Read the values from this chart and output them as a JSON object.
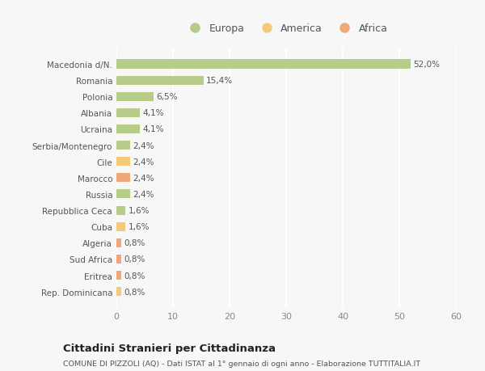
{
  "categories": [
    "Rep. Dominicana",
    "Eritrea",
    "Sud Africa",
    "Algeria",
    "Cuba",
    "Repubblica Ceca",
    "Russia",
    "Marocco",
    "Cile",
    "Serbia/Montenegro",
    "Ucraina",
    "Albania",
    "Polonia",
    "Romania",
    "Macedonia d/N."
  ],
  "values": [
    0.8,
    0.8,
    0.8,
    0.8,
    1.6,
    1.6,
    2.4,
    2.4,
    2.4,
    2.4,
    4.1,
    4.1,
    6.5,
    15.4,
    52.0
  ],
  "colors": [
    "#f5c97a",
    "#f0a878",
    "#f0a878",
    "#f0a878",
    "#f5c97a",
    "#b8cc8a",
    "#b8cc8a",
    "#f0a878",
    "#f5c97a",
    "#b8cc8a",
    "#b8cc8a",
    "#b8cc8a",
    "#b8cc8a",
    "#b8cc8a",
    "#b8cc8a"
  ],
  "labels": [
    "0,8%",
    "0,8%",
    "0,8%",
    "0,8%",
    "1,6%",
    "1,6%",
    "2,4%",
    "2,4%",
    "2,4%",
    "2,4%",
    "4,1%",
    "4,1%",
    "6,5%",
    "15,4%",
    "52,0%"
  ],
  "xlim": [
    0,
    60
  ],
  "xticks": [
    0,
    10,
    20,
    30,
    40,
    50,
    60
  ],
  "legend_items": [
    {
      "label": "Europa",
      "color": "#b8cc8a"
    },
    {
      "label": "America",
      "color": "#f5c97a"
    },
    {
      "label": "Africa",
      "color": "#f0a878"
    }
  ],
  "title": "Cittadini Stranieri per Cittadinanza",
  "subtitle": "COMUNE DI PIZZOLI (AQ) - Dati ISTAT al 1° gennaio di ogni anno - Elaborazione TUTTITALIA.IT",
  "background_color": "#f7f7f7",
  "grid_color": "#ffffff",
  "bar_height": 0.55
}
